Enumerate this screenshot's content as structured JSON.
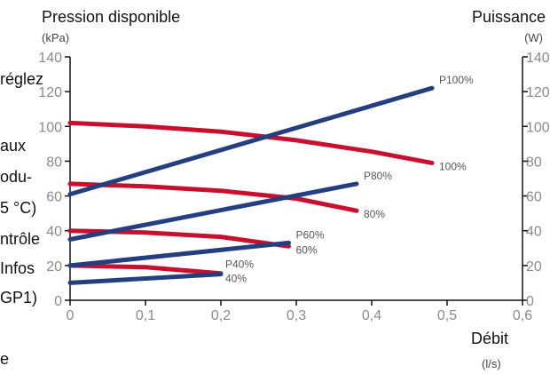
{
  "left_fragments": [
    "réglez",
    "aux",
    "odu-",
    "5  °C)",
    "ntrôle",
    "Infos",
    "GP1)",
    "e"
  ],
  "chart_data": {
    "type": "line",
    "y_left": {
      "label": "Pression disponible",
      "unit": "(kPa)",
      "range": [
        0,
        140
      ],
      "ticks": [
        "0",
        "20",
        "40",
        "60",
        "80",
        "100",
        "120",
        "140"
      ]
    },
    "y_right": {
      "label": "Puissance",
      "unit": "(W)",
      "range": [
        0,
        140
      ],
      "ticks": [
        "0",
        "20",
        "40",
        "60",
        "80",
        "100",
        "120",
        "140"
      ]
    },
    "x": {
      "label": "Débit",
      "unit": "(l/s)",
      "range": [
        0,
        0.6
      ],
      "ticks": [
        "0",
        "0,1",
        "0,2",
        "0,3",
        "0,4",
        "0,5",
        "0,6"
      ]
    },
    "grid": false,
    "series": [
      {
        "name": "100%",
        "kind": "pressure",
        "color": "#c8102e",
        "points": [
          [
            0,
            102
          ],
          [
            0.1,
            100
          ],
          [
            0.2,
            97
          ],
          [
            0.3,
            92
          ],
          [
            0.4,
            85.5
          ],
          [
            0.48,
            79
          ]
        ]
      },
      {
        "name": "80%",
        "kind": "pressure",
        "color": "#c8102e",
        "points": [
          [
            0,
            67
          ],
          [
            0.1,
            65.5
          ],
          [
            0.2,
            63
          ],
          [
            0.3,
            58.5
          ],
          [
            0.38,
            51.5
          ]
        ]
      },
      {
        "name": "60%",
        "kind": "pressure",
        "color": "#c8102e",
        "points": [
          [
            0,
            40
          ],
          [
            0.1,
            39
          ],
          [
            0.2,
            36.5
          ],
          [
            0.29,
            31
          ]
        ]
      },
      {
        "name": "40%",
        "kind": "pressure",
        "color": "#c8102e",
        "points": [
          [
            0,
            20
          ],
          [
            0.1,
            19
          ],
          [
            0.2,
            15.5
          ]
        ]
      },
      {
        "name": "P100%",
        "kind": "power",
        "color": "#233f7f",
        "points": [
          [
            0,
            61
          ],
          [
            0.48,
            122
          ]
        ]
      },
      {
        "name": "P80%",
        "kind": "power",
        "color": "#233f7f",
        "points": [
          [
            0,
            35
          ],
          [
            0.38,
            67
          ]
        ]
      },
      {
        "name": "P60%",
        "kind": "power",
        "color": "#233f7f",
        "points": [
          [
            0,
            20
          ],
          [
            0.29,
            33
          ]
        ]
      },
      {
        "name": "P40%",
        "kind": "power",
        "color": "#233f7f",
        "points": [
          [
            0,
            10
          ],
          [
            0.2,
            15
          ]
        ]
      }
    ]
  }
}
